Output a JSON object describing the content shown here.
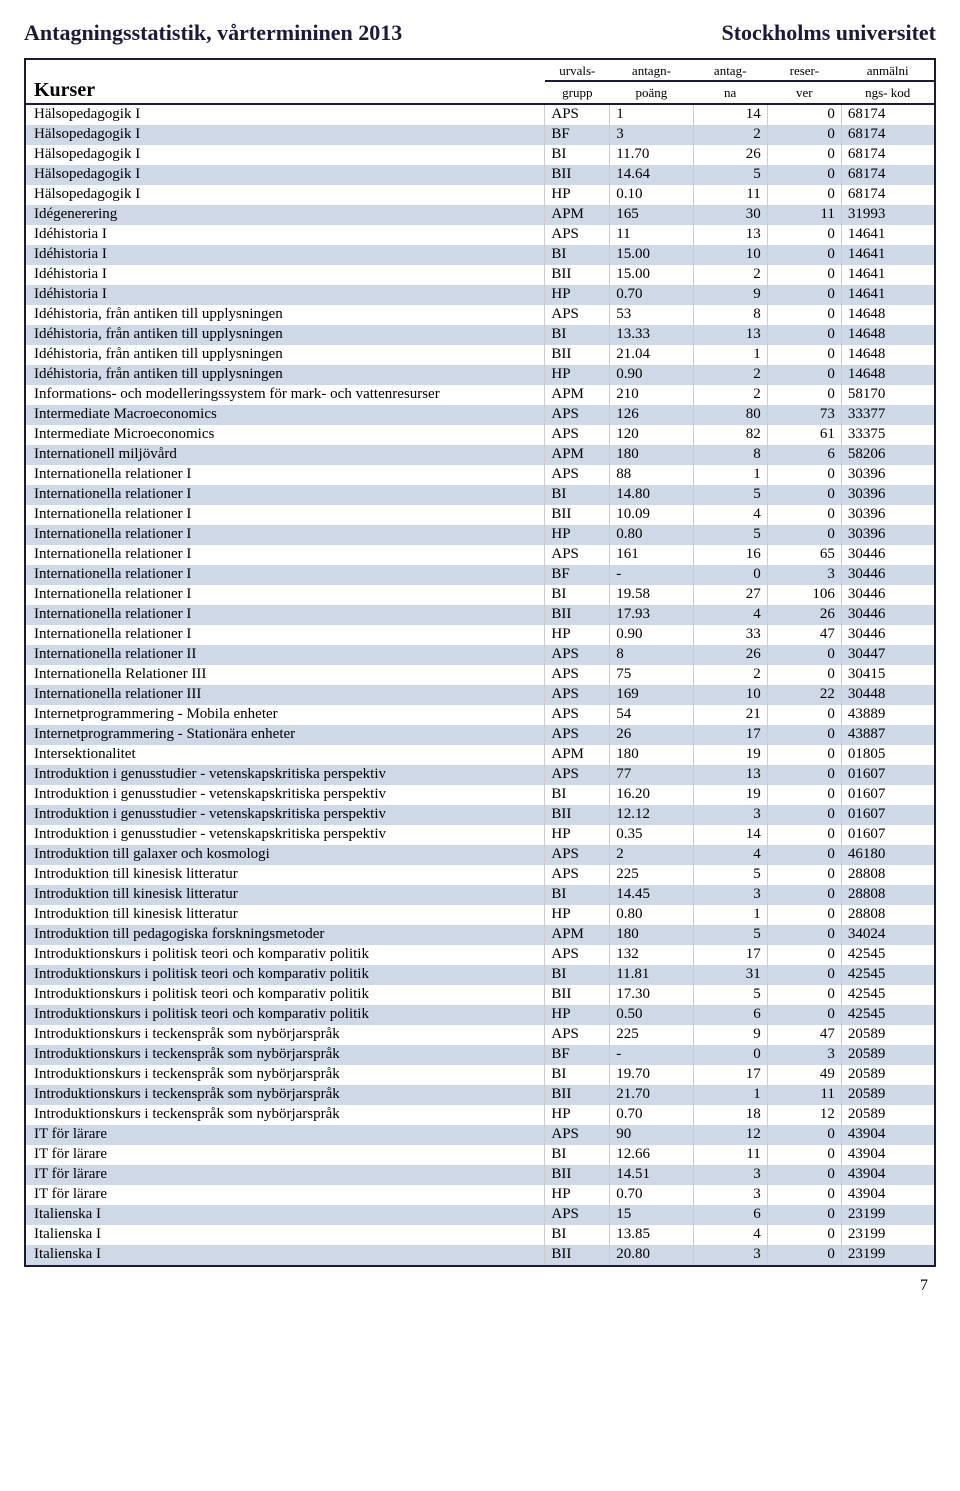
{
  "header": {
    "left": "Antagningsstatistik, vårtermininen 2013",
    "right": "Stockholms universitet"
  },
  "columns": {
    "kurser": "Kurser",
    "grupp1": "urvals-",
    "grupp2": "grupp",
    "poang1": "antagn-",
    "poang2": "poäng",
    "antag1": "antag-",
    "antag2": "na",
    "reser1": "reser-",
    "reser2": "ver",
    "kod1": "anmälni",
    "kod2": "ngs- kod"
  },
  "rows": [
    {
      "c": "Hälsopedagogik I",
      "g": "APS",
      "p": "1",
      "a": "14",
      "r": "0",
      "k": "68174"
    },
    {
      "c": "Hälsopedagogik I",
      "g": "BF",
      "p": "3",
      "a": "2",
      "r": "0",
      "k": "68174"
    },
    {
      "c": "Hälsopedagogik I",
      "g": "BI",
      "p": "11.70",
      "a": "26",
      "r": "0",
      "k": "68174"
    },
    {
      "c": "Hälsopedagogik I",
      "g": "BII",
      "p": "14.64",
      "a": "5",
      "r": "0",
      "k": "68174"
    },
    {
      "c": "Hälsopedagogik I",
      "g": "HP",
      "p": "0.10",
      "a": "11",
      "r": "0",
      "k": "68174"
    },
    {
      "c": "Idégenerering",
      "g": "APM",
      "p": "165",
      "a": "30",
      "r": "11",
      "k": "31993"
    },
    {
      "c": "Idéhistoria I",
      "g": "APS",
      "p": "11",
      "a": "13",
      "r": "0",
      "k": "14641"
    },
    {
      "c": "Idéhistoria I",
      "g": "BI",
      "p": "15.00",
      "a": "10",
      "r": "0",
      "k": "14641"
    },
    {
      "c": "Idéhistoria I",
      "g": "BII",
      "p": "15.00",
      "a": "2",
      "r": "0",
      "k": "14641"
    },
    {
      "c": "Idéhistoria I",
      "g": "HP",
      "p": "0.70",
      "a": "9",
      "r": "0",
      "k": "14641"
    },
    {
      "c": "Idéhistoria, från antiken till upplysningen",
      "g": "APS",
      "p": "53",
      "a": "8",
      "r": "0",
      "k": "14648"
    },
    {
      "c": "Idéhistoria, från antiken till upplysningen",
      "g": "BI",
      "p": "13.33",
      "a": "13",
      "r": "0",
      "k": "14648"
    },
    {
      "c": "Idéhistoria, från antiken till upplysningen",
      "g": "BII",
      "p": "21.04",
      "a": "1",
      "r": "0",
      "k": "14648"
    },
    {
      "c": "Idéhistoria, från antiken till upplysningen",
      "g": "HP",
      "p": "0.90",
      "a": "2",
      "r": "0",
      "k": "14648"
    },
    {
      "c": "Informations- och modelleringssystem för mark- och vattenresurser",
      "g": "APM",
      "p": "210",
      "a": "2",
      "r": "0",
      "k": "58170"
    },
    {
      "c": "Intermediate Macroeconomics",
      "g": "APS",
      "p": "126",
      "a": "80",
      "r": "73",
      "k": "33377"
    },
    {
      "c": "Intermediate Microeconomics",
      "g": "APS",
      "p": "120",
      "a": "82",
      "r": "61",
      "k": "33375"
    },
    {
      "c": "Internationell miljövård",
      "g": "APM",
      "p": "180",
      "a": "8",
      "r": "6",
      "k": "58206"
    },
    {
      "c": "Internationella relationer I",
      "g": "APS",
      "p": "88",
      "a": "1",
      "r": "0",
      "k": "30396"
    },
    {
      "c": "Internationella relationer I",
      "g": "BI",
      "p": "14.80",
      "a": "5",
      "r": "0",
      "k": "30396"
    },
    {
      "c": "Internationella relationer I",
      "g": "BII",
      "p": "10.09",
      "a": "4",
      "r": "0",
      "k": "30396"
    },
    {
      "c": "Internationella relationer I",
      "g": "HP",
      "p": "0.80",
      "a": "5",
      "r": "0",
      "k": "30396"
    },
    {
      "c": "Internationella relationer I",
      "g": "APS",
      "p": "161",
      "a": "16",
      "r": "65",
      "k": "30446"
    },
    {
      "c": "Internationella relationer I",
      "g": "BF",
      "p": "-",
      "a": "0",
      "r": "3",
      "k": "30446"
    },
    {
      "c": "Internationella relationer I",
      "g": "BI",
      "p": "19.58",
      "a": "27",
      "r": "106",
      "k": "30446"
    },
    {
      "c": "Internationella relationer I",
      "g": "BII",
      "p": "17.93",
      "a": "4",
      "r": "26",
      "k": "30446"
    },
    {
      "c": "Internationella relationer I",
      "g": "HP",
      "p": "0.90",
      "a": "33",
      "r": "47",
      "k": "30446"
    },
    {
      "c": "Internationella relationer II",
      "g": "APS",
      "p": "8",
      "a": "26",
      "r": "0",
      "k": "30447"
    },
    {
      "c": "Internationella Relationer III",
      "g": "APS",
      "p": "75",
      "a": "2",
      "r": "0",
      "k": "30415"
    },
    {
      "c": "Internationella relationer III",
      "g": "APS",
      "p": "169",
      "a": "10",
      "r": "22",
      "k": "30448"
    },
    {
      "c": "Internetprogrammering - Mobila enheter",
      "g": "APS",
      "p": "54",
      "a": "21",
      "r": "0",
      "k": "43889"
    },
    {
      "c": "Internetprogrammering - Stationära enheter",
      "g": "APS",
      "p": "26",
      "a": "17",
      "r": "0",
      "k": "43887"
    },
    {
      "c": "Intersektionalitet",
      "g": "APM",
      "p": "180",
      "a": "19",
      "r": "0",
      "k": "01805"
    },
    {
      "c": "Introduktion i genusstudier - vetenskapskritiska perspektiv",
      "g": "APS",
      "p": "77",
      "a": "13",
      "r": "0",
      "k": "01607"
    },
    {
      "c": "Introduktion i genusstudier - vetenskapskritiska perspektiv",
      "g": "BI",
      "p": "16.20",
      "a": "19",
      "r": "0",
      "k": "01607"
    },
    {
      "c": "Introduktion i genusstudier - vetenskapskritiska perspektiv",
      "g": "BII",
      "p": "12.12",
      "a": "3",
      "r": "0",
      "k": "01607"
    },
    {
      "c": "Introduktion i genusstudier - vetenskapskritiska perspektiv",
      "g": "HP",
      "p": "0.35",
      "a": "14",
      "r": "0",
      "k": "01607"
    },
    {
      "c": "Introduktion till galaxer och kosmologi",
      "g": "APS",
      "p": "2",
      "a": "4",
      "r": "0",
      "k": "46180"
    },
    {
      "c": "Introduktion till kinesisk litteratur",
      "g": "APS",
      "p": "225",
      "a": "5",
      "r": "0",
      "k": "28808"
    },
    {
      "c": "Introduktion till kinesisk litteratur",
      "g": "BI",
      "p": "14.45",
      "a": "3",
      "r": "0",
      "k": "28808"
    },
    {
      "c": "Introduktion till kinesisk litteratur",
      "g": "HP",
      "p": "0.80",
      "a": "1",
      "r": "0",
      "k": "28808"
    },
    {
      "c": "Introduktion till pedagogiska forskningsmetoder",
      "g": "APM",
      "p": "180",
      "a": "5",
      "r": "0",
      "k": "34024"
    },
    {
      "c": "Introduktionskurs i politisk teori och komparativ politik",
      "g": "APS",
      "p": "132",
      "a": "17",
      "r": "0",
      "k": "42545"
    },
    {
      "c": "Introduktionskurs i politisk teori och komparativ politik",
      "g": "BI",
      "p": "11.81",
      "a": "31",
      "r": "0",
      "k": "42545"
    },
    {
      "c": "Introduktionskurs i politisk teori och komparativ politik",
      "g": "BII",
      "p": "17.30",
      "a": "5",
      "r": "0",
      "k": "42545"
    },
    {
      "c": "Introduktionskurs i politisk teori och komparativ politik",
      "g": "HP",
      "p": "0.50",
      "a": "6",
      "r": "0",
      "k": "42545"
    },
    {
      "c": "Introduktionskurs i teckenspråk som nybörjarspråk",
      "g": "APS",
      "p": "225",
      "a": "9",
      "r": "47",
      "k": "20589"
    },
    {
      "c": "Introduktionskurs i teckenspråk som nybörjarspråk",
      "g": "BF",
      "p": "-",
      "a": "0",
      "r": "3",
      "k": "20589"
    },
    {
      "c": "Introduktionskurs i teckenspråk som nybörjarspråk",
      "g": "BI",
      "p": "19.70",
      "a": "17",
      "r": "49",
      "k": "20589"
    },
    {
      "c": "Introduktionskurs i teckenspråk som nybörjarspråk",
      "g": "BII",
      "p": "21.70",
      "a": "1",
      "r": "11",
      "k": "20589"
    },
    {
      "c": "Introduktionskurs i teckenspråk som nybörjarspråk",
      "g": "HP",
      "p": "0.70",
      "a": "18",
      "r": "12",
      "k": "20589"
    },
    {
      "c": "IT för lärare",
      "g": "APS",
      "p": "90",
      "a": "12",
      "r": "0",
      "k": "43904"
    },
    {
      "c": "IT för lärare",
      "g": "BI",
      "p": "12.66",
      "a": "11",
      "r": "0",
      "k": "43904"
    },
    {
      "c": "IT för lärare",
      "g": "BII",
      "p": "14.51",
      "a": "3",
      "r": "0",
      "k": "43904"
    },
    {
      "c": "IT för lärare",
      "g": "HP",
      "p": "0.70",
      "a": "3",
      "r": "0",
      "k": "43904"
    },
    {
      "c": "Italienska I",
      "g": "APS",
      "p": "15",
      "a": "6",
      "r": "0",
      "k": "23199"
    },
    {
      "c": "Italienska I",
      "g": "BI",
      "p": "13.85",
      "a": "4",
      "r": "0",
      "k": "23199"
    },
    {
      "c": "Italienska I",
      "g": "BII",
      "p": "20.80",
      "a": "3",
      "r": "0",
      "k": "23199"
    }
  ],
  "page": "7"
}
